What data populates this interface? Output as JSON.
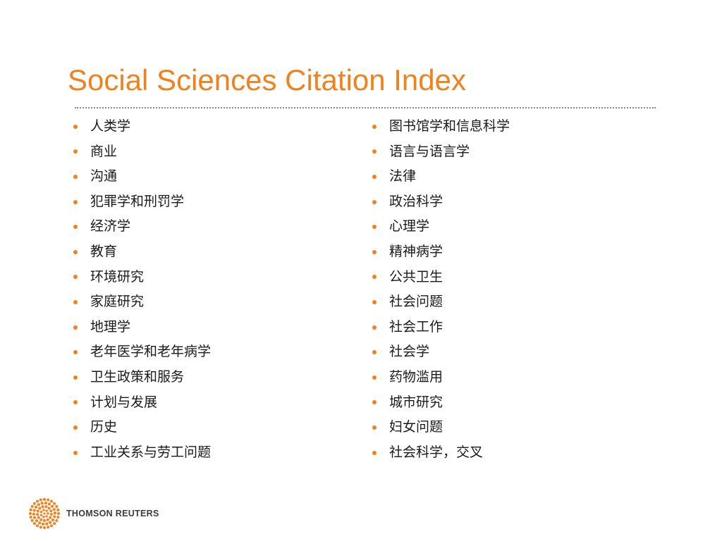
{
  "slide": {
    "title": "Social Sciences Citation Index",
    "accent_color": "#f0821e",
    "left_column": [
      "人类学",
      "商业",
      "沟通",
      "犯罪学和刑罚学",
      "经济学",
      "教育",
      "环境研究",
      "家庭研究",
      "地理学",
      "老年医学和老年病学",
      "卫生政策和服务",
      "计划与发展",
      "历史",
      "工业关系与劳工问题"
    ],
    "right_column": [
      "图书馆学和信息科学",
      "语言与语言学",
      "法律",
      "政治科学",
      "心理学",
      "精神病学",
      "公共卫生",
      "社会问题",
      "社会工作",
      "社会学",
      "药物滥用",
      "城市研究",
      "妇女问题",
      "社会科学，交叉"
    ]
  },
  "footer": {
    "logo_text": "THOMSON REUTERS",
    "logo_icon": "orange-dot-circle-icon"
  }
}
